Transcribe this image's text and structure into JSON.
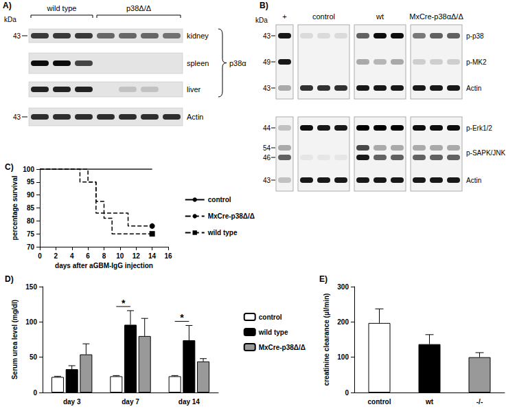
{
  "blots": [
    {
      "label": "A)",
      "unit": "kDa",
      "groups": [
        {
          "text": "wild type",
          "lanes": 3
        },
        {
          "text": "p38Δ/Δ",
          "lanes": 4
        }
      ],
      "rows": [
        {
          "name": "kidney",
          "markers": [
            43
          ],
          "bands": [
            [
              0.75,
              0.75,
              0.75,
              0.55,
              0.55,
              0.55,
              0.5
            ]
          ]
        },
        {
          "name": "spleen",
          "markers": [],
          "bands": [
            [
              0.95,
              0.95,
              0.7,
              0,
              0,
              0,
              0
            ]
          ]
        },
        {
          "name": "liver",
          "markers": [],
          "bands": [
            [
              0.85,
              0.85,
              0.85,
              0,
              0.15,
              0.15,
              0
            ]
          ]
        },
        {
          "name": "Actin",
          "markers": [
            43
          ],
          "bands": [
            [
              0.8,
              0.8,
              0.8,
              0.8,
              0.8,
              0.8,
              0.8
            ]
          ]
        }
      ],
      "bracket": {
        "rows": [
          "kidney",
          "spleen",
          "liver"
        ],
        "text": "p38α"
      }
    },
    {
      "label": "B)",
      "unit": "kDa",
      "groups": [
        {
          "text": "+",
          "lanes": 1
        },
        {
          "text": "control",
          "lanes": 3
        },
        {
          "text": "wt",
          "lanes": 3
        },
        {
          "text": "MxCre-p38αΔ/Δ",
          "lanes": 3
        }
      ],
      "blocks": [
        [
          {
            "name": "p-p38",
            "markers": [
              43
            ],
            "bands": [
              [
                0.9,
                0.1,
                0.1,
                0.1,
                0.6,
                0.95,
                0.95,
                0.5,
                0.6,
                0.6
              ]
            ]
          },
          {
            "name": "p-MK2",
            "markers": [
              49
            ],
            "bands": [
              [
                0.9,
                0,
                0,
                0,
                0.3,
                0.25,
                0.3,
                0.15,
                0.15,
                0.15
              ]
            ]
          },
          {
            "name": "Actin",
            "markers": [
              43
            ],
            "bands": [
              [
                0.3,
                0.8,
                0.8,
                0.8,
                0.9,
                0.9,
                0.9,
                0.9,
                0.9,
                0.9
              ]
            ]
          }
        ],
        [
          {
            "name": "p-Erk1/2",
            "markers": [
              44
            ],
            "bands": [
              [
                0.2,
                0.95,
                0.9,
                0.9,
                1,
                1,
                1,
                0.95,
                0.95,
                0.95
              ]
            ]
          },
          {
            "name": "p-SAPK/JNK",
            "markers": [
              54,
              46
            ],
            "bands": [
              [
                0.3,
                0,
                0,
                0,
                0.7,
                0.3,
                0.3,
                0.3,
                0.3,
                0.3
              ],
              [
                0.6,
                0.05,
                0.05,
                0.05,
                0.9,
                0.6,
                0.6,
                0.6,
                0.6,
                0.6
              ]
            ]
          },
          {
            "name": "Actin",
            "markers": [
              43
            ],
            "bands": [
              [
                0.2,
                0.9,
                0.9,
                0.9,
                0.9,
                0.9,
                0.9,
                0.9,
                0.9,
                0.9
              ]
            ]
          }
        ]
      ]
    }
  ],
  "chart_data": [
    {
      "type": "line",
      "title": "C)",
      "x_label": "days after aGBM-IgG injection",
      "y_label": "percentage survival",
      "xlim": [
        0,
        16
      ],
      "xticks": [
        0,
        2,
        4,
        6,
        8,
        10,
        12,
        14,
        16
      ],
      "ylim": [
        70,
        100
      ],
      "yticks": [
        70,
        75,
        80,
        85,
        90,
        95,
        100
      ],
      "grid": false,
      "legend": "right",
      "series": [
        {
          "name": "control",
          "color": "#000000",
          "marker": "none",
          "line_style": "solid",
          "x": [
            0,
            14
          ],
          "values": [
            100,
            100
          ]
        },
        {
          "name": "MxCre-p38Δ/Δ",
          "color": "#000000",
          "marker": "circle",
          "line_style": "dashed",
          "x": [
            0,
            5,
            7,
            11,
            14
          ],
          "values": [
            100,
            95,
            83,
            78,
            78
          ]
        },
        {
          "name": "wild type",
          "color": "#000000",
          "marker": "square",
          "line_style": "dashed",
          "x": [
            0,
            6,
            7,
            8,
            9,
            14
          ],
          "values": [
            100,
            95,
            87.5,
            81,
            75,
            75
          ]
        }
      ]
    },
    {
      "type": "bar",
      "title": "D)",
      "y_label": "Serum urea level (mg/dl)",
      "categories": [
        "day 3",
        "day 7",
        "day 14"
      ],
      "ylim": [
        0,
        150
      ],
      "yticks": [
        0,
        50,
        100,
        150
      ],
      "grid": false,
      "legend": "right",
      "series": [
        {
          "name": "control",
          "color": "#ffffff",
          "values": [
            22,
            23,
            23
          ],
          "errors": [
            1,
            1,
            1
          ]
        },
        {
          "name": "wild type",
          "color": "#000000",
          "values": [
            33,
            96,
            74
          ],
          "errors": [
            5,
            20,
            21
          ]
        },
        {
          "name": "MxCre-p38Δ/Δ",
          "color": "#999999",
          "values": [
            54,
            80,
            44
          ],
          "errors": [
            15,
            25,
            4
          ]
        }
      ],
      "annotations": [
        {
          "category": "day 7",
          "text": "*",
          "series": [
            "control",
            "wild type"
          ]
        },
        {
          "category": "day 14",
          "text": "*",
          "series": [
            "control",
            "wild type"
          ]
        }
      ]
    },
    {
      "type": "bar",
      "title": "E)",
      "y_label": "creatinine clearance (µl/min)",
      "categories": [
        "control",
        "wt",
        "-/-"
      ],
      "values": [
        197,
        137,
        100
      ],
      "errors": [
        40,
        27,
        13
      ],
      "colors": [
        "#ffffff",
        "#000000",
        "#999999"
      ],
      "ylim": [
        0,
        300
      ],
      "yticks": [
        0,
        100,
        200,
        300
      ],
      "grid": false
    }
  ]
}
